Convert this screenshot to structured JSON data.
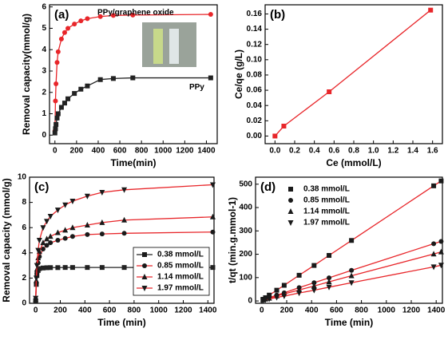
{
  "chart_data": [
    {
      "type": "line",
      "panel_label": "(a)",
      "xlabel": "Time(min)",
      "ylabel": "Removal capacity(mmol/g)",
      "x": [
        0,
        5,
        10,
        20,
        30,
        60,
        90,
        120,
        180,
        240,
        300,
        420,
        540,
        720,
        1440
      ],
      "series": [
        {
          "name": "PPy/graphene oxide",
          "color": "#e8262a",
          "marker": "circle",
          "values": [
            0.2,
            1.6,
            2.4,
            3.4,
            3.9,
            4.5,
            4.8,
            5.0,
            5.2,
            5.35,
            5.45,
            5.55,
            5.6,
            5.62,
            5.65
          ]
        },
        {
          "name": "PPy",
          "color": "#222222",
          "marker": "square",
          "values": [
            0.1,
            0.3,
            0.5,
            0.8,
            1.0,
            1.3,
            1.5,
            1.7,
            1.95,
            2.15,
            2.3,
            2.6,
            2.65,
            2.68,
            2.68
          ]
        }
      ],
      "xlim": [
        -50,
        1500
      ],
      "xticks": [
        0,
        200,
        400,
        600,
        800,
        1000,
        1200,
        1400
      ],
      "ylim": [
        -0.4,
        6.1
      ],
      "yticks": [
        0,
        1,
        2,
        3,
        4,
        5,
        6
      ]
    },
    {
      "type": "line",
      "panel_label": "(b)",
      "xlabel": "Ce (mmol/L)",
      "ylabel": "Ce/qe (g/L)",
      "x": [
        0,
        0.09,
        0.55,
        1.58
      ],
      "values": [
        0,
        0.013,
        0.058,
        0.165
      ],
      "color": "#e8262a",
      "marker": "square",
      "xlim": [
        -0.1,
        1.7
      ],
      "xticks": [
        {
          "value": 0,
          "label": "0.0"
        },
        0.2,
        0.4,
        0.6,
        0.8,
        {
          "value": 1,
          "label": "1.0"
        },
        1.2,
        1.4,
        1.6
      ],
      "ylim": [
        -0.01,
        0.172
      ],
      "yticks": [
        {
          "value": 0,
          "label": "0.00"
        },
        {
          "value": 0.02,
          "label": "0.02"
        },
        {
          "value": 0.04,
          "label": "0.04"
        },
        {
          "value": 0.06,
          "label": "0.06"
        },
        {
          "value": 0.08,
          "label": "0.08"
        },
        {
          "value": 0.1,
          "label": "0.10"
        },
        {
          "value": 0.12,
          "label": "0.12"
        },
        {
          "value": 0.14,
          "label": "0.14"
        },
        {
          "value": 0.16,
          "label": "0.16"
        }
      ]
    },
    {
      "type": "line",
      "panel_label": "(c)",
      "xlabel": "Time (min)",
      "ylabel": "Removal capacity (mmol/g)",
      "legend": "lower right",
      "x": [
        0,
        5,
        10,
        20,
        30,
        60,
        90,
        120,
        180,
        240,
        300,
        420,
        540,
        720,
        1440
      ],
      "series": [
        {
          "name": "0.38 mmol/L",
          "color": "#222222",
          "marker": "square",
          "values": [
            0.2,
            1.5,
            2.2,
            2.6,
            2.75,
            2.8,
            2.82,
            2.83,
            2.83,
            2.84,
            2.84,
            2.84,
            2.84,
            2.84,
            2.84
          ]
        },
        {
          "name": "0.85 mmol/L",
          "color": "#e8262a",
          "marker": "circle",
          "values": [
            0.3,
            1.6,
            2.4,
            3.2,
            3.7,
            4.3,
            4.6,
            4.8,
            5.0,
            5.15,
            5.3,
            5.45,
            5.5,
            5.55,
            5.65
          ]
        },
        {
          "name": "1.14 mmol/L",
          "color": "#e8262a",
          "marker": "triangle-up",
          "values": [
            0.3,
            1.8,
            2.7,
            3.6,
            4.1,
            4.8,
            5.1,
            5.3,
            5.6,
            5.8,
            6.0,
            6.2,
            6.4,
            6.6,
            6.85
          ]
        },
        {
          "name": "1.97 mmol/L",
          "color": "#e8262a",
          "marker": "triangle-down",
          "values": [
            0.4,
            2.0,
            3.0,
            4.2,
            5.0,
            6.0,
            6.5,
            6.9,
            7.4,
            7.8,
            8.1,
            8.5,
            8.8,
            9.0,
            9.4
          ]
        }
      ],
      "xlim": [
        -50,
        1450
      ],
      "xticks": [
        0,
        200,
        400,
        600,
        800,
        1000,
        1200,
        1400
      ],
      "ylim": [
        0,
        10
      ],
      "yticks": [
        0,
        2,
        4,
        6,
        8,
        10
      ]
    },
    {
      "type": "line",
      "panel_label": "(d)",
      "xlabel": "Time (min)",
      "ylabel": "t/qt (min.g.mmol-1)",
      "legend": "upper left",
      "x": [
        10,
        30,
        60,
        120,
        180,
        300,
        420,
        540,
        720,
        1380,
        1440
      ],
      "series": [
        {
          "name": "0.38 mmol/L",
          "color": "#e8262a",
          "marker": "square",
          "values": [
            7,
            14,
            25,
            46,
            67,
            110,
            152,
            195,
            259,
            493,
            514
          ]
        },
        {
          "name": "0.85 mmol/L",
          "color": "#e8262a",
          "marker": "circle",
          "values": [
            5,
            9,
            14,
            25,
            35,
            57,
            78,
            99,
            131,
            245,
            255
          ]
        },
        {
          "name": "1.14 mmol/L",
          "color": "#e8262a",
          "marker": "triangle-up",
          "values": [
            4,
            8,
            12,
            21,
            30,
            47,
            64,
            82,
            108,
            201,
            210
          ]
        },
        {
          "name": "1.97 mmol/L",
          "color": "#e8262a",
          "marker": "triangle-down",
          "values": [
            3,
            6,
            9,
            15,
            21,
            34,
            46,
            59,
            78,
            146,
            153
          ]
        }
      ],
      "xlim": [
        -50,
        1450
      ],
      "xticks": [
        0,
        200,
        400,
        600,
        800,
        1000,
        1200,
        1400
      ],
      "ylim": [
        -10,
        530
      ],
      "yticks": [
        0,
        100,
        200,
        300,
        400,
        500
      ]
    }
  ]
}
